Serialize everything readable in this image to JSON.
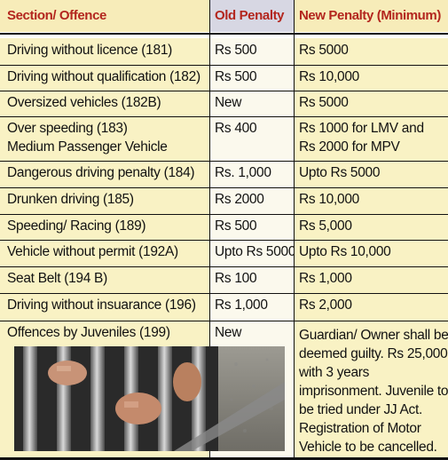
{
  "headers": {
    "section": "Section/ Offence",
    "old": "Old Penalty",
    "new": "New Penalty (Minimum)"
  },
  "rows": [
    {
      "offence": "Driving without licence (181)",
      "old": "Rs 500",
      "new": "Rs 5000"
    },
    {
      "offence": "Driving without qualification (182)",
      "old": "Rs 500",
      "new": "Rs 10,000"
    },
    {
      "offence": "Oversized vehicles (182B)",
      "old": "New",
      "new": "Rs 5000"
    },
    {
      "offence_l1": "Over speeding (183)",
      "offence_l2": "Medium Passenger Vehicle",
      "old": "Rs 400",
      "new_l1": "Rs 1000 for LMV and",
      "new_l2": "Rs 2000 for MPV"
    },
    {
      "offence": "Dangerous driving penalty (184)",
      "old": "Rs. 1,000",
      "new": "Upto Rs 5000"
    },
    {
      "offence": "Drunken driving (185)",
      "old": "Rs 2000",
      "new": "Rs 10,000"
    },
    {
      "offence": "Speeding/ Racing (189)",
      "old": "Rs 500",
      "new": "Rs 5,000"
    },
    {
      "offence": "Vehicle without permit (192A)",
      "old": "Upto Rs 5000",
      "new": "Upto Rs 10,000"
    },
    {
      "offence": "Seat Belt (194 B)",
      "old": "Rs 100",
      "new": "Rs 1,000"
    },
    {
      "offence": "Driving without insuarance (196)",
      "old": "Rs 1,000",
      "new": "Rs 2,000"
    },
    {
      "offence": "Offences by Juveniles (199)",
      "old": "New",
      "new_lines": [
        "Guardian/ Owner shall be",
        "deemed guilty. Rs 25,000",
        "with 3 years",
        "imprisonment. Juvenile to",
        "be tried under JJ Act.",
        "Registration of Motor",
        "Vehicle to be cancelled."
      ]
    }
  ]
}
